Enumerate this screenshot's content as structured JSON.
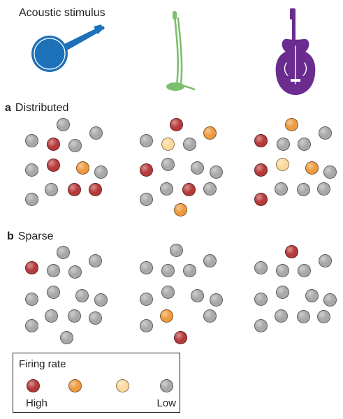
{
  "header": {
    "title": "Acoustic stimulus"
  },
  "panels": {
    "a": {
      "letter": "a",
      "label": "Distributed"
    },
    "b": {
      "letter": "b",
      "label": "Sparse"
    }
  },
  "legend": {
    "title": "Firing rate",
    "high_label": "High",
    "low_label": "Low",
    "levels": [
      "high",
      "medium",
      "low-medium",
      "low"
    ]
  },
  "colors": {
    "high": "#b73a3a",
    "medium": "#ee9a3f",
    "low-medium": "#fbd99b",
    "low": "#a8a8a8",
    "banjo": "#1d71b8",
    "microphone": "#7cbf6c",
    "double_bass": "#6a2c8e"
  },
  "instruments": [
    {
      "name": "banjo",
      "icon": "banjo-icon"
    },
    {
      "name": "microphone",
      "icon": "microphone-icon"
    },
    {
      "name": "double-bass",
      "icon": "double-bass-icon"
    }
  ],
  "neuron_states": {
    "distributed": [
      [
        "low",
        "low",
        "low",
        "high",
        "low",
        "high",
        "medium",
        "low",
        "low",
        "low",
        "high",
        "high",
        "low"
      ],
      [
        "low",
        "high",
        "medium",
        "low-medium",
        "low",
        "low",
        "low",
        "high",
        "low",
        "low",
        "high",
        "low",
        "low",
        "medium"
      ],
      [
        "high",
        "medium",
        "low",
        "low",
        "low",
        "low-medium",
        "medium",
        "high",
        "low",
        "low",
        "low",
        "low",
        "high"
      ]
    ],
    "sparse": [
      [
        "low",
        "high",
        "low",
        "low",
        "low",
        "low",
        "low",
        "low",
        "low",
        "low",
        "low",
        "low",
        "low",
        "low"
      ],
      [
        "low",
        "low",
        "low",
        "low",
        "low",
        "low",
        "low",
        "low",
        "low",
        "low",
        "medium",
        "low",
        "high"
      ],
      [
        "high",
        "low",
        "low",
        "low",
        "low",
        "low",
        "low",
        "low",
        "low",
        "low",
        "low",
        "low",
        "low"
      ]
    ]
  }
}
